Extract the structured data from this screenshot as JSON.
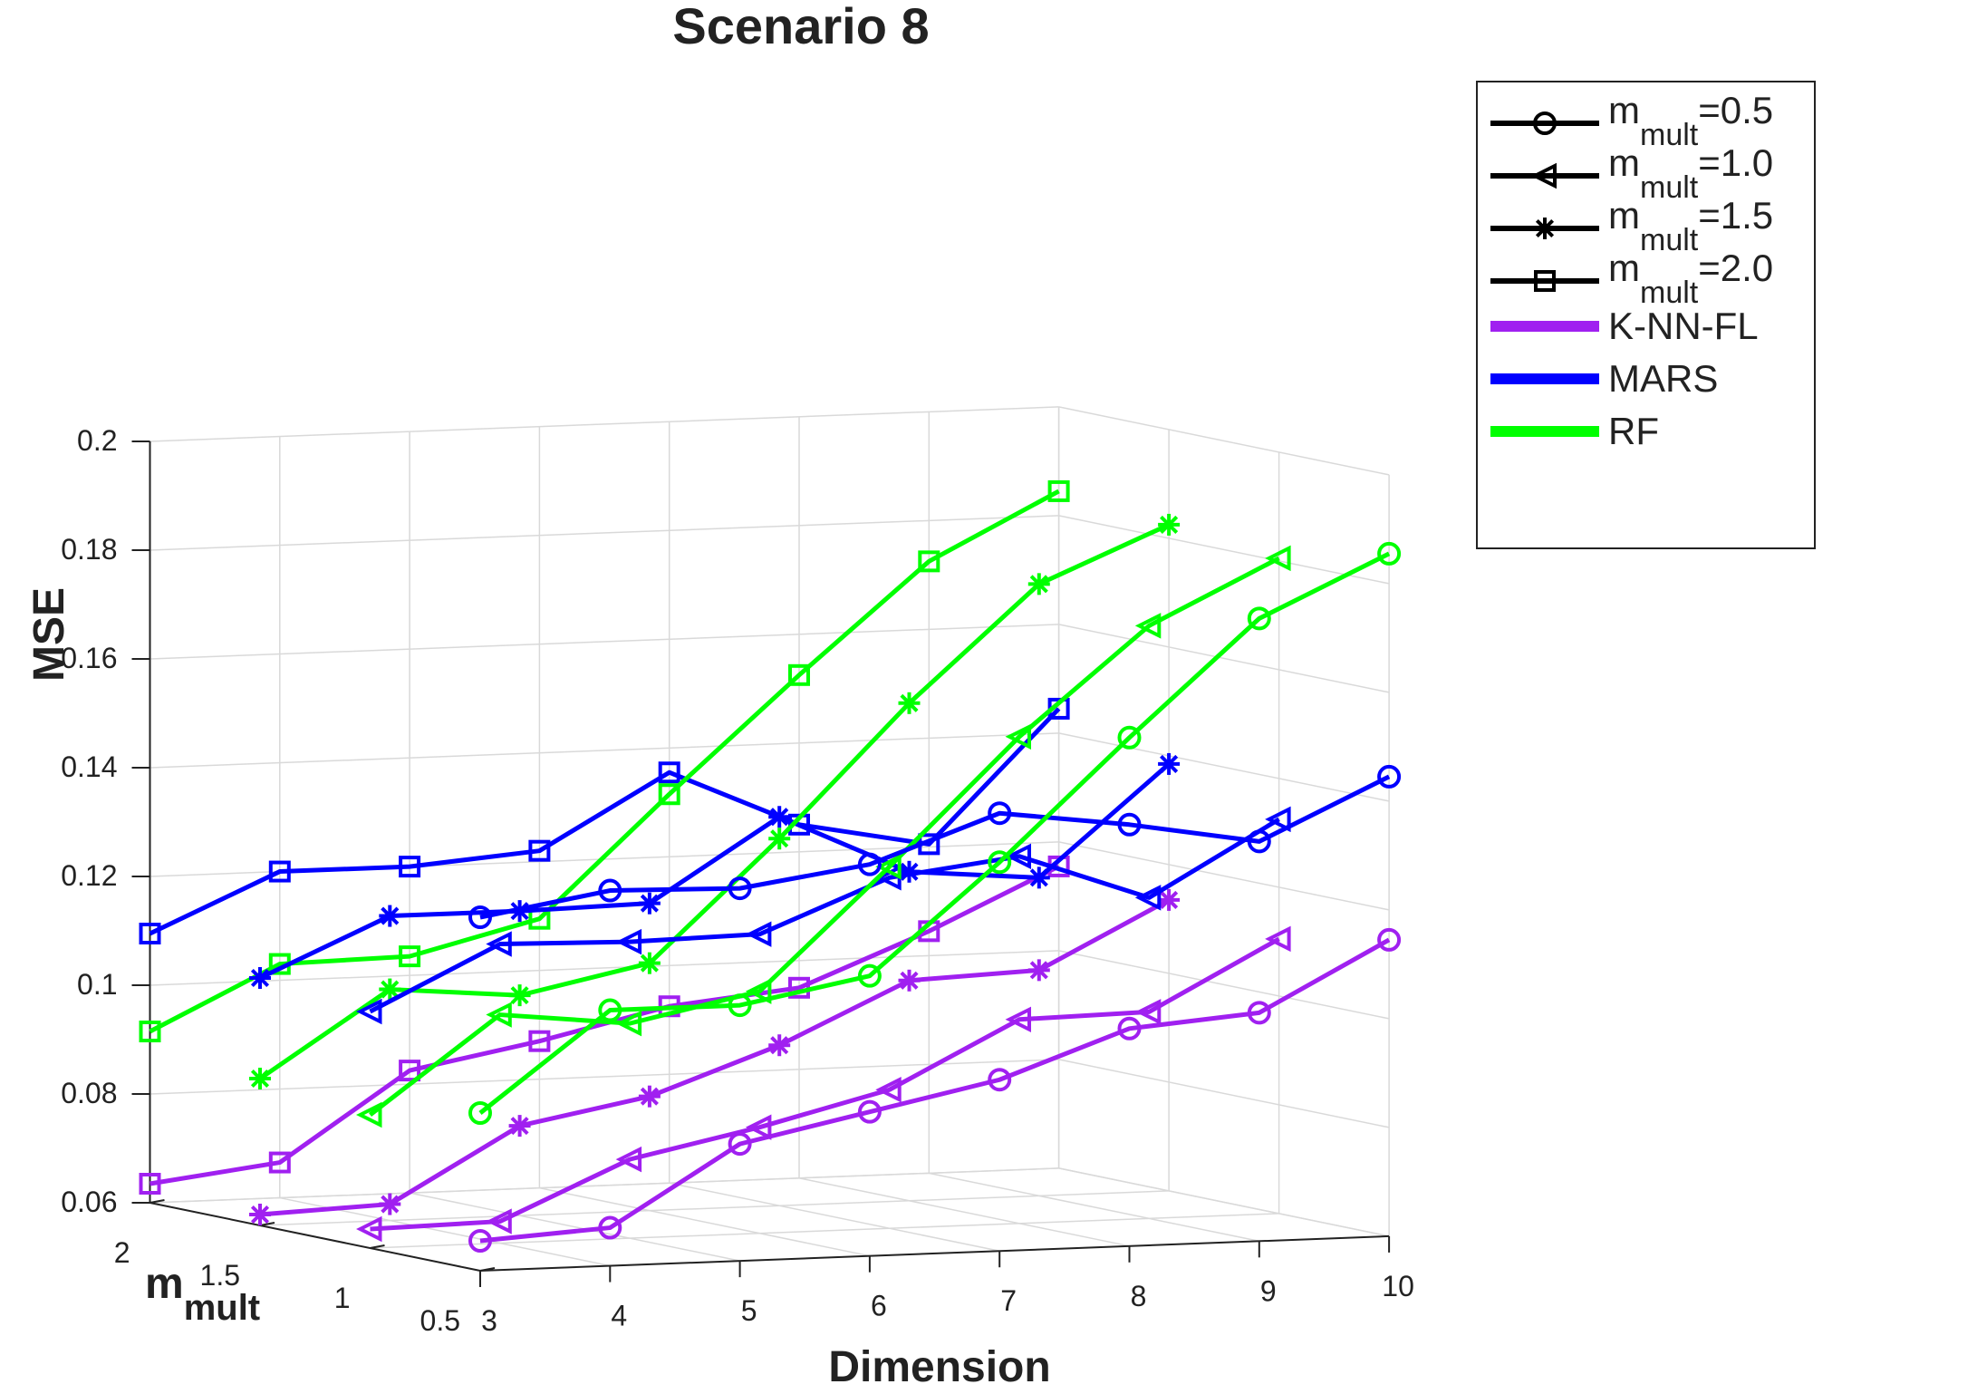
{
  "chart_data": {
    "type": "line3d",
    "title": "Scenario 8",
    "xlabel": "Dimension",
    "ylabel": "m",
    "ylabel_sub": "mult",
    "zlabel": "MSE",
    "x_ticks": [
      "3",
      "4",
      "5",
      "6",
      "7",
      "8",
      "9",
      "10"
    ],
    "y_ticks": [
      "0.5",
      "1",
      "1.5",
      "2"
    ],
    "z_ticks": [
      "0.06",
      "0.08",
      "0.1",
      "0.12",
      "0.14",
      "0.16",
      "0.18",
      "0.2"
    ],
    "xlim": [
      3,
      10
    ],
    "ylim": [
      0.5,
      2.0
    ],
    "zlim": [
      0.06,
      0.2
    ],
    "x": [
      3,
      4,
      5,
      6,
      7,
      8,
      9,
      10
    ],
    "colors": {
      "K-NN-FL": "#a020f0",
      "MARS": "#0000ff",
      "RF": "#00ff00",
      "axis": "#222222",
      "grid": "#d9d9d9"
    },
    "series": [
      {
        "method": "K-NN-FL",
        "m_mult": 0.5,
        "marker": "circle",
        "values": [
          0.0655,
          0.067,
          0.0815,
          0.0865,
          0.0915,
          0.1,
          0.102,
          0.1145
        ]
      },
      {
        "method": "K-NN-FL",
        "m_mult": 1.0,
        "marker": "triangle",
        "values": [
          0.0635,
          0.064,
          0.0745,
          0.0795,
          0.0855,
          0.0975,
          0.098,
          0.1105
        ]
      },
      {
        "method": "K-NN-FL",
        "m_mult": 1.5,
        "marker": "star",
        "values": [
          0.062,
          0.063,
          0.0765,
          0.081,
          0.0895,
          0.1005,
          0.1015,
          0.1135
        ]
      },
      {
        "method": "K-NN-FL",
        "m_mult": 2.0,
        "marker": "square",
        "values": [
          0.0635,
          0.0665,
          0.0825,
          0.087,
          0.0925,
          0.095,
          0.1045,
          0.1155
        ]
      },
      {
        "method": "MARS",
        "m_mult": 0.5,
        "marker": "circle",
        "values": [
          0.125,
          0.129,
          0.1285,
          0.132,
          0.1405,
          0.1375,
          0.1335,
          0.1445
        ]
      },
      {
        "method": "MARS",
        "m_mult": 1.0,
        "marker": "triangle",
        "values": [
          0.1035,
          0.115,
          0.1145,
          0.115,
          0.1245,
          0.1275,
          0.119,
          0.1325
        ]
      },
      {
        "method": "MARS",
        "m_mult": 1.5,
        "marker": "star",
        "values": [
          0.1055,
          0.116,
          0.116,
          0.1165,
          0.1315,
          0.1205,
          0.1185,
          0.1385
        ]
      },
      {
        "method": "MARS",
        "m_mult": 2.0,
        "marker": "square",
        "values": [
          0.1095,
          0.12,
          0.12,
          0.122,
          0.1355,
          0.125,
          0.1205,
          0.1445
        ]
      },
      {
        "method": "RF",
        "m_mult": 0.5,
        "marker": "circle",
        "values": [
          0.089,
          0.107,
          0.107,
          0.1115,
          0.1315,
          0.1535,
          0.1745,
          0.1855
        ]
      },
      {
        "method": "RF",
        "m_mult": 1.0,
        "marker": "triangle",
        "values": [
          0.0845,
          0.102,
          0.0995,
          0.1045,
          0.1265,
          0.1495,
          0.169,
          0.1805
        ]
      },
      {
        "method": "RF",
        "m_mult": 1.5,
        "marker": "star",
        "values": [
          0.087,
          0.1025,
          0.1005,
          0.1055,
          0.1275,
          0.1515,
          0.1725,
          0.1825
        ]
      },
      {
        "method": "RF",
        "m_mult": 2.0,
        "marker": "square",
        "values": [
          0.0915,
          0.103,
          0.1035,
          0.1095,
          0.1315,
          0.1525,
          0.1725,
          0.1845
        ]
      }
    ],
    "legend": [
      {
        "label": "m",
        "sub": "mult",
        "suffix": "=0.5",
        "kind": "marker",
        "marker": "circle"
      },
      {
        "label": "m",
        "sub": "mult",
        "suffix": "=1.0",
        "kind": "marker",
        "marker": "triangle"
      },
      {
        "label": "m",
        "sub": "mult",
        "suffix": "=1.5",
        "kind": "marker",
        "marker": "star"
      },
      {
        "label": "m",
        "sub": "mult",
        "suffix": "=2.0",
        "kind": "marker",
        "marker": "square"
      },
      {
        "label": "K-NN-FL",
        "kind": "color",
        "method": "K-NN-FL"
      },
      {
        "label": "MARS",
        "kind": "color",
        "method": "MARS"
      },
      {
        "label": "RF",
        "kind": "color",
        "method": "RF"
      }
    ],
    "legend_position": "top-right, outside plot"
  }
}
